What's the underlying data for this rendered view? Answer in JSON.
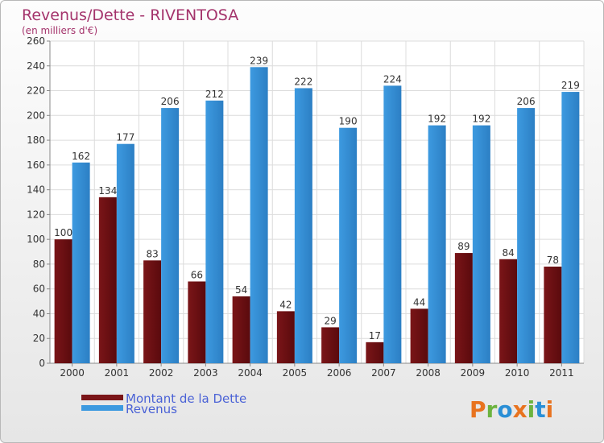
{
  "chart_data": {
    "type": "bar",
    "title": "Revenus/Dette - RIVENTOSA",
    "subtitle": "(en milliers d'€)",
    "categories": [
      "2000",
      "2001",
      "2002",
      "2003",
      "2004",
      "2005",
      "2006",
      "2007",
      "2008",
      "2009",
      "2010",
      "2011"
    ],
    "series": [
      {
        "name": "Montant de la Dette",
        "color": "#7a1518",
        "values": [
          100,
          134,
          83,
          66,
          54,
          42,
          29,
          17,
          44,
          89,
          84,
          78
        ]
      },
      {
        "name": "Revenus",
        "color": "#3d9ae0",
        "values": [
          162,
          177,
          206,
          212,
          239,
          222,
          190,
          224,
          192,
          192,
          206,
          219
        ]
      }
    ],
    "ylim": [
      0,
      260
    ],
    "yticks": [
      0,
      20,
      40,
      60,
      80,
      100,
      120,
      140,
      160,
      180,
      200,
      220,
      240,
      260
    ],
    "grid": true,
    "legend_placement": "bottom-left"
  },
  "logo": {
    "text": "Proxiti",
    "letters": [
      {
        "ch": "P",
        "color": "#e8731f"
      },
      {
        "ch": "r",
        "color": "#6cb33f"
      },
      {
        "ch": "o",
        "color": "#2a8fd6"
      },
      {
        "ch": "x",
        "color": "#e8731f"
      },
      {
        "ch": "i",
        "color": "#6cb33f"
      },
      {
        "ch": "t",
        "color": "#2a8fd6"
      },
      {
        "ch": "i",
        "color": "#e8731f"
      }
    ]
  }
}
